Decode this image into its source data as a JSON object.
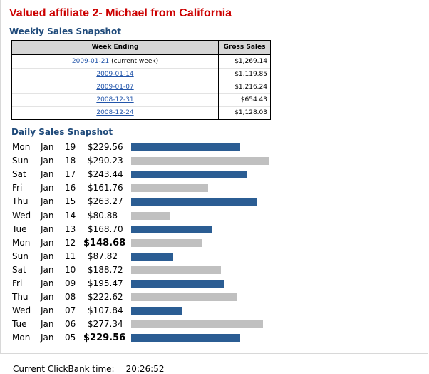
{
  "page": {
    "title": "Valued affiliate 2- Michael from California"
  },
  "weekly": {
    "title": "Weekly Sales Snapshot",
    "headers": {
      "week": "Week Ending",
      "gross": "Gross Sales"
    },
    "rows": [
      {
        "date": "2009-01-21",
        "note": "(current week)",
        "gross": "$1,269.14"
      },
      {
        "date": "2009-01-14",
        "note": "",
        "gross": "$1,119.85"
      },
      {
        "date": "2009-01-07",
        "note": "",
        "gross": "$1,216.24"
      },
      {
        "date": "2008-12-31",
        "note": "",
        "gross": "$654.43"
      },
      {
        "date": "2008-12-24",
        "note": "",
        "gross": "$1,128.03"
      }
    ]
  },
  "daily": {
    "title": "Daily Sales Snapshot",
    "colors": {
      "weekday": "#2b5d93",
      "weekend": "#c0c0c0"
    },
    "rows": [
      {
        "dow": "Mon",
        "month": "Jan",
        "day": "19",
        "amount": "$229.56",
        "value": 229.56,
        "bold": false,
        "color": "weekday"
      },
      {
        "dow": "Sun",
        "month": "Jan",
        "day": "18",
        "amount": "$290.23",
        "value": 290.23,
        "bold": false,
        "color": "weekend"
      },
      {
        "dow": "Sat",
        "month": "Jan",
        "day": "17",
        "amount": "$243.44",
        "value": 243.44,
        "bold": false,
        "color": "weekday"
      },
      {
        "dow": "Fri",
        "month": "Jan",
        "day": "16",
        "amount": "$161.76",
        "value": 161.76,
        "bold": false,
        "color": "weekend"
      },
      {
        "dow": "Thu",
        "month": "Jan",
        "day": "15",
        "amount": "$263.27",
        "value": 263.27,
        "bold": false,
        "color": "weekday"
      },
      {
        "dow": "Wed",
        "month": "Jan",
        "day": "14",
        "amount": "$80.88",
        "value": 80.88,
        "bold": false,
        "color": "weekend"
      },
      {
        "dow": "Tue",
        "month": "Jan",
        "day": "13",
        "amount": "$168.70",
        "value": 168.7,
        "bold": false,
        "color": "weekday"
      },
      {
        "dow": "Mon",
        "month": "Jan",
        "day": "12",
        "amount": "$148.68",
        "value": 148.68,
        "bold": true,
        "color": "weekend"
      },
      {
        "dow": "Sun",
        "month": "Jan",
        "day": "11",
        "amount": "$87.82",
        "value": 87.82,
        "bold": false,
        "color": "weekday"
      },
      {
        "dow": "Sat",
        "month": "Jan",
        "day": "10",
        "amount": "$188.72",
        "value": 188.72,
        "bold": false,
        "color": "weekend"
      },
      {
        "dow": "Fri",
        "month": "Jan",
        "day": "09",
        "amount": "$195.47",
        "value": 195.47,
        "bold": false,
        "color": "weekday"
      },
      {
        "dow": "Thu",
        "month": "Jan",
        "day": "08",
        "amount": "$222.62",
        "value": 222.62,
        "bold": false,
        "color": "weekend"
      },
      {
        "dow": "Wed",
        "month": "Jan",
        "day": "07",
        "amount": "$107.84",
        "value": 107.84,
        "bold": false,
        "color": "weekday"
      },
      {
        "dow": "Tue",
        "month": "Jan",
        "day": "06",
        "amount": "$277.34",
        "value": 277.34,
        "bold": false,
        "color": "weekend"
      },
      {
        "dow": "Mon",
        "month": "Jan",
        "day": "05",
        "amount": "$229.56",
        "value": 229.56,
        "bold": true,
        "color": "weekday"
      }
    ]
  },
  "footer": {
    "label": "Current ClickBank time:",
    "time": "20:26:52"
  }
}
